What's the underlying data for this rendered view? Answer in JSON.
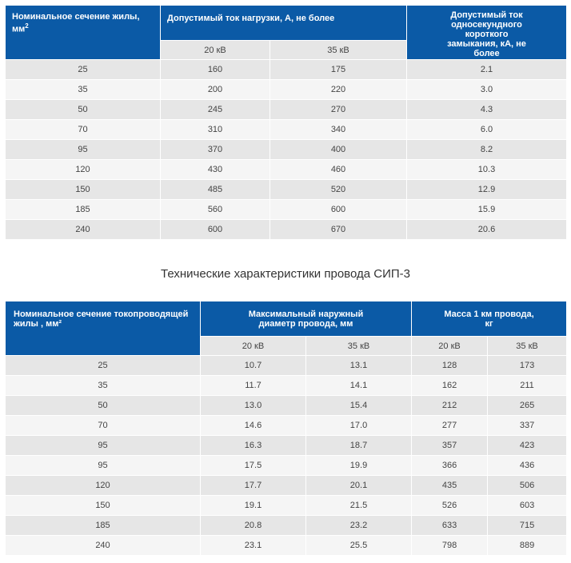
{
  "table1": {
    "headers": {
      "section": "Номинальное сечение жилы, мм",
      "section_sup": "2",
      "current": "Допустимый ток нагрузки, А, не более",
      "short_circuit": "Допустимый ток односекундного короткого замыкания, кА, не более",
      "kv20": "20 кВ",
      "kv35": "35 кВ"
    },
    "rows": [
      [
        "25",
        "160",
        "175",
        "2.1"
      ],
      [
        "35",
        "200",
        "220",
        "3.0"
      ],
      [
        "50",
        "245",
        "270",
        "4.3"
      ],
      [
        "70",
        "310",
        "340",
        "6.0"
      ],
      [
        "95",
        "370",
        "400",
        "8.2"
      ],
      [
        "120",
        "430",
        "460",
        "10.3"
      ],
      [
        "150",
        "485",
        "520",
        "12.9"
      ],
      [
        "185",
        "560",
        "600",
        "15.9"
      ],
      [
        "240",
        "600",
        "670",
        "20.6"
      ]
    ]
  },
  "table2": {
    "title": "Технические характеристики провода СИП-3",
    "headers": {
      "section": "Номинальное сечение токопроводящей жилы , мм²",
      "diameter": "Максимальный наружный диаметр провода, мм",
      "mass": "Масса 1 км провода, кг",
      "kv20": "20 кВ",
      "kv35": "35 кВ"
    },
    "rows": [
      [
        "25",
        "10.7",
        "13.1",
        "128",
        "173"
      ],
      [
        "35",
        "11.7",
        "14.1",
        "162",
        "211"
      ],
      [
        "50",
        "13.0",
        "15.4",
        "212",
        "265"
      ],
      [
        "70",
        "14.6",
        "17.0",
        "277",
        "337"
      ],
      [
        "95",
        "16.3",
        "18.7",
        "357",
        "423"
      ],
      [
        "95",
        "17.5",
        "19.9",
        "366",
        "436"
      ],
      [
        "120",
        "17.7",
        "20.1",
        "435",
        "506"
      ],
      [
        "150",
        "19.1",
        "21.5",
        "526",
        "603"
      ],
      [
        "185",
        "20.8",
        "23.2",
        "633",
        "715"
      ],
      [
        "240",
        "23.1",
        "25.5",
        "798",
        "889"
      ]
    ]
  }
}
